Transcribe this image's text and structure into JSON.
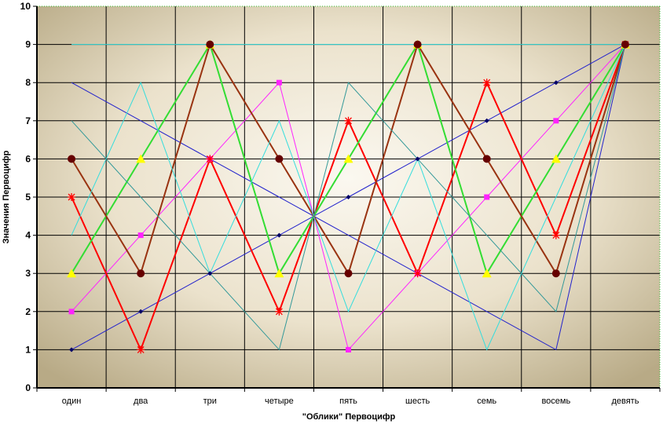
{
  "chart_data": {
    "type": "line",
    "title": "",
    "xlabel": "\"Облики\" Первоцифр",
    "ylabel": "Значения Первоцифр",
    "categories": [
      "один",
      "два",
      "три",
      "четыре",
      "пять",
      "шесть",
      "семь",
      "восемь",
      "девять"
    ],
    "ylim": [
      0,
      10
    ],
    "yticks": [
      "0",
      "1",
      "2",
      "3",
      "4",
      "5",
      "6",
      "7",
      "8",
      "9",
      "10"
    ],
    "grid": true,
    "legend": "none",
    "series": [
      {
        "color": "#2222cc",
        "width": 1,
        "marker": "diamond",
        "values": [
          1,
          2,
          3,
          4,
          5,
          6,
          7,
          8,
          9
        ]
      },
      {
        "color": "#2222cc",
        "width": 1,
        "marker": "none",
        "values": [
          8,
          7,
          6,
          5,
          4,
          3,
          2,
          1,
          9
        ]
      },
      {
        "color": "#ff22ff",
        "width": 1,
        "marker": "square",
        "values": [
          2,
          4,
          6,
          8,
          1,
          3,
          5,
          7,
          9
        ]
      },
      {
        "color": "#ff0000",
        "width": 2,
        "marker": "star",
        "values": [
          5,
          1,
          6,
          2,
          7,
          3,
          8,
          4,
          9
        ]
      },
      {
        "color": "#33dd33",
        "width": 2,
        "marker": "triangle",
        "values": [
          3,
          6,
          9,
          3,
          6,
          9,
          3,
          6,
          9
        ]
      },
      {
        "color": "#993311",
        "width": 2,
        "marker": "circle",
        "values": [
          6,
          3,
          9,
          6,
          3,
          9,
          6,
          3,
          9
        ]
      },
      {
        "color": "#33dddd",
        "width": 1,
        "marker": "none",
        "values": [
          4,
          8,
          3,
          7,
          2,
          6,
          1,
          5,
          9
        ]
      },
      {
        "color": "#339999",
        "width": 1,
        "marker": "none",
        "values": [
          7,
          5,
          3,
          1,
          8,
          6,
          4,
          2,
          9
        ]
      },
      {
        "color": "#33dddd",
        "width": 1,
        "marker": "none",
        "values": [
          9,
          9,
          9,
          9,
          9,
          9,
          9,
          9,
          9
        ]
      }
    ]
  }
}
